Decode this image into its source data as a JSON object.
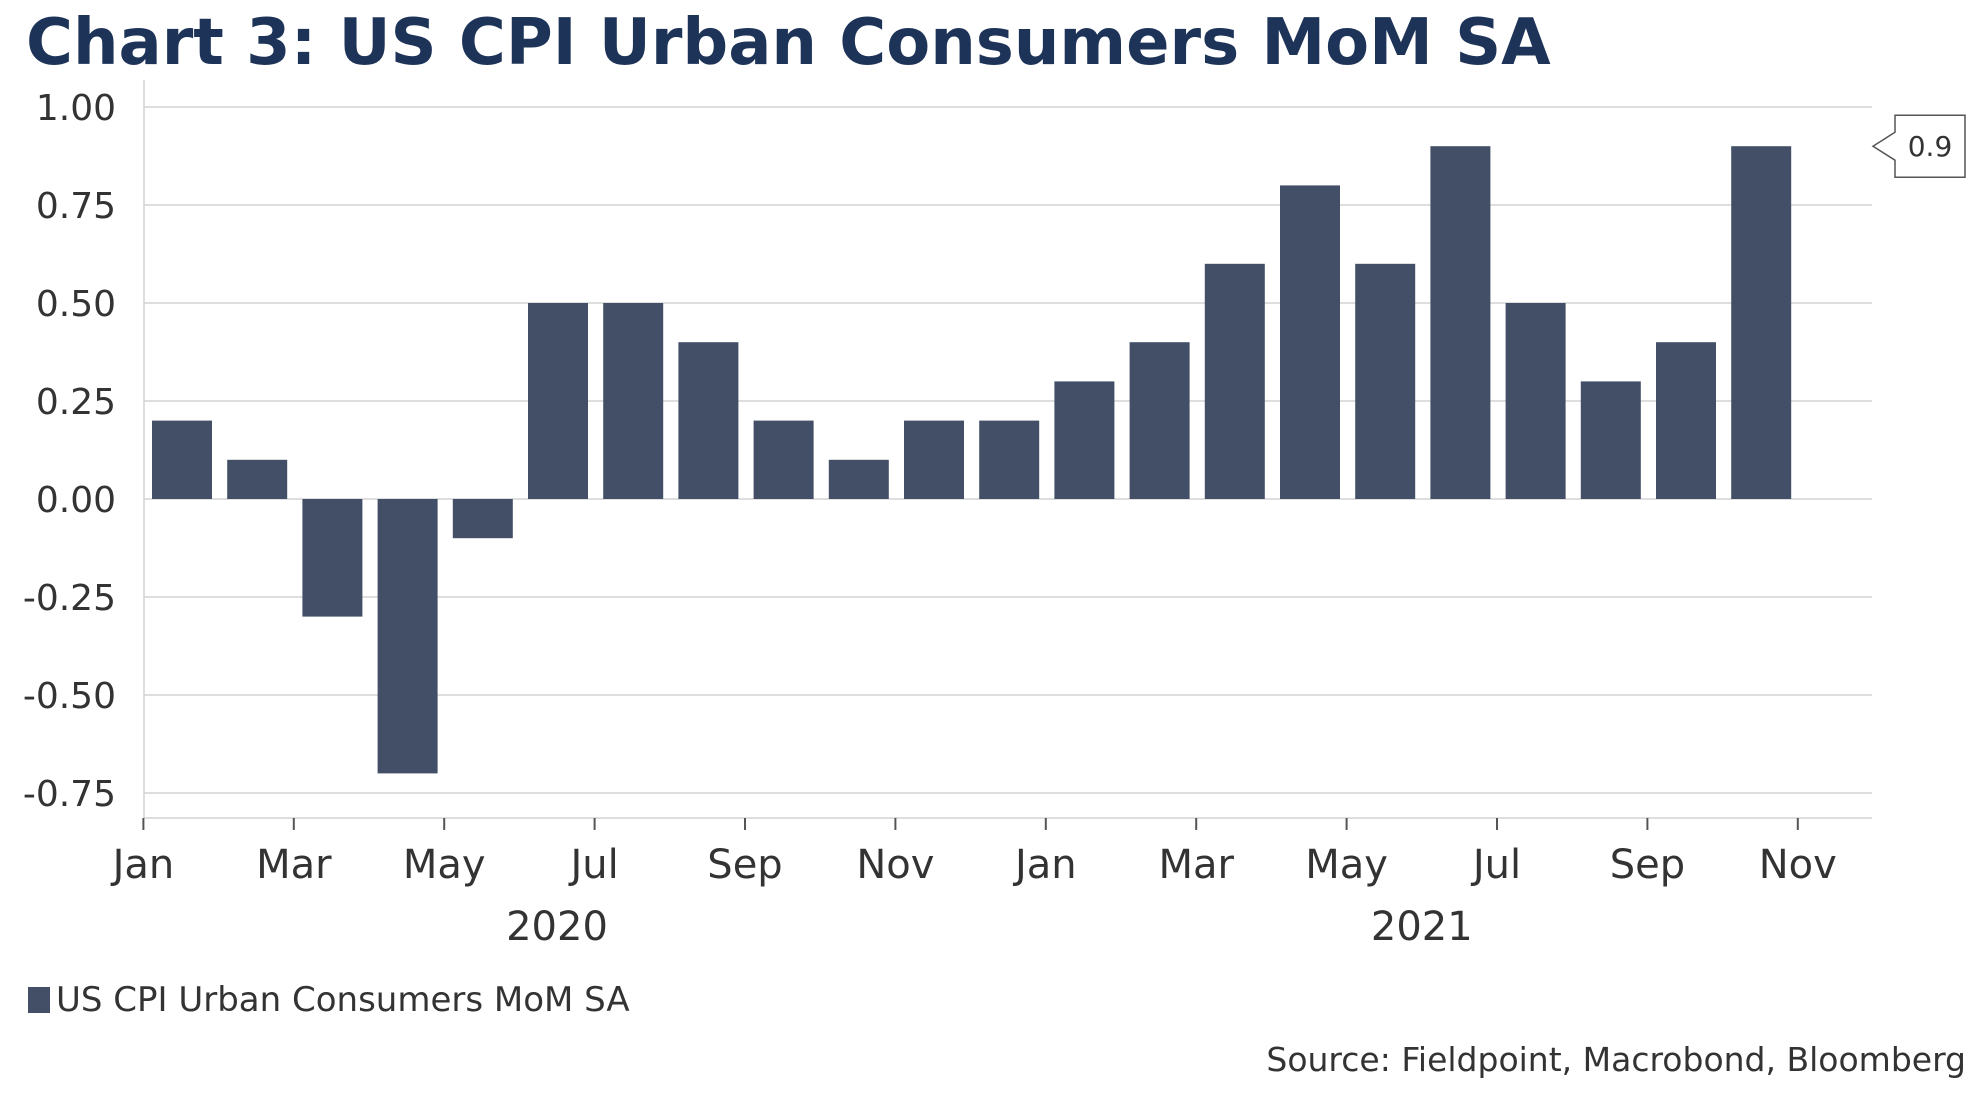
{
  "colors": {
    "bar": "#434f67",
    "title": "#1e3358",
    "grid": "#d4d4d4",
    "text": "#333333"
  },
  "chart_data": {
    "type": "bar",
    "title": "Chart 3: US CPI Urban Consumers MoM SA",
    "categories": [
      "Jan 2020",
      "Feb 2020",
      "Mar 2020",
      "Apr 2020",
      "May 2020",
      "Jun 2020",
      "Jul 2020",
      "Aug 2020",
      "Sep 2020",
      "Oct 2020",
      "Nov 2020",
      "Dec 2020",
      "Jan 2021",
      "Feb 2021",
      "Mar 2021",
      "Apr 2021",
      "May 2021",
      "Jun 2021",
      "Jul 2021",
      "Aug 2021",
      "Sep 2021",
      "Oct 2021"
    ],
    "series": [
      {
        "name": "US CPI Urban Consumers MoM SA",
        "values": [
          0.2,
          0.1,
          -0.3,
          -0.7,
          -0.1,
          0.5,
          0.5,
          0.4,
          0.2,
          0.1,
          0.2,
          0.2,
          0.3,
          0.4,
          0.6,
          0.8,
          0.6,
          0.9,
          0.5,
          0.3,
          0.4,
          0.9
        ]
      }
    ],
    "ylim": [
      -0.75,
      1.0
    ],
    "yticks": [
      "1.00",
      "0.75",
      "0.50",
      "0.25",
      "0.00",
      "-0.25",
      "-0.50",
      "-0.75"
    ],
    "ytick_values": [
      1.0,
      0.75,
      0.5,
      0.25,
      0.0,
      -0.25,
      -0.5,
      -0.75
    ],
    "xticks": [
      {
        "label": "Jan",
        "index": 0
      },
      {
        "label": "Mar",
        "index": 2
      },
      {
        "label": "May",
        "index": 4
      },
      {
        "label": "Jul",
        "index": 6
      },
      {
        "label": "Sep",
        "index": 8
      },
      {
        "label": "Nov",
        "index": 10
      },
      {
        "label": "Jan",
        "index": 12
      },
      {
        "label": "Mar",
        "index": 14
      },
      {
        "label": "May",
        "index": 16
      },
      {
        "label": "Jul",
        "index": 18
      },
      {
        "label": "Sep",
        "index": 20
      },
      {
        "label": "Nov",
        "index": 22
      }
    ],
    "year_labels": [
      {
        "label": "2020",
        "center_index": 5.5
      },
      {
        "label": "2021",
        "center_index": 17
      }
    ],
    "last_value_label": "0.9",
    "legend_position": "bottom-left",
    "xlabel": "",
    "ylabel": ""
  },
  "legend": {
    "label": "US CPI Urban Consumers MoM SA"
  },
  "source": "Source: Fieldpoint, Macrobond, Bloomberg"
}
